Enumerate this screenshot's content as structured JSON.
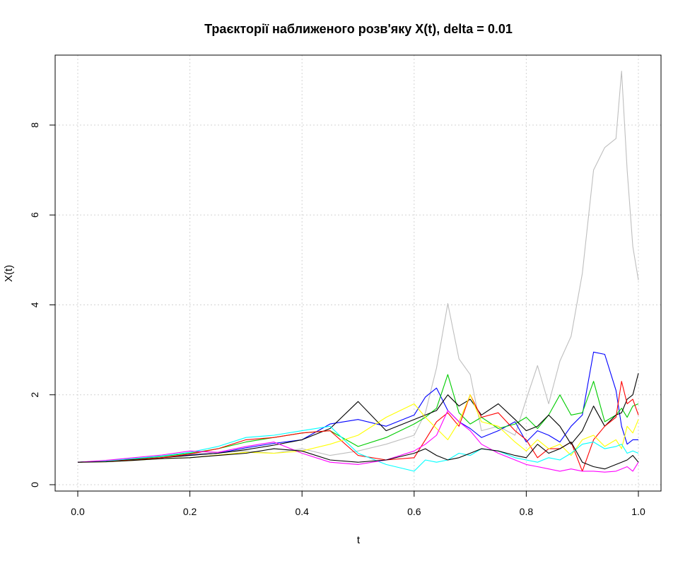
{
  "chart_data": {
    "type": "line",
    "title": "Траєкторії наближеного розв'яку X(t), delta = 0.01",
    "xlabel": "t",
    "ylabel": "X(t)",
    "xlim": [
      0,
      1
    ],
    "ylim": [
      0,
      9.2
    ],
    "xticks": [
      0.0,
      0.2,
      0.4,
      0.6,
      0.8,
      1.0
    ],
    "xtick_labels": [
      "0.0",
      "0.2",
      "0.4",
      "0.6",
      "0.8",
      "1.0"
    ],
    "yticks": [
      0,
      2,
      4,
      6,
      8
    ],
    "ytick_labels": [
      "0",
      "2",
      "4",
      "6",
      "8"
    ],
    "grid": true,
    "legend": "none",
    "x": [
      0,
      0.05,
      0.1,
      0.15,
      0.2,
      0.25,
      0.3,
      0.35,
      0.4,
      0.45,
      0.5,
      0.55,
      0.6,
      0.62,
      0.64,
      0.66,
      0.68,
      0.7,
      0.72,
      0.75,
      0.78,
      0.8,
      0.82,
      0.84,
      0.86,
      0.88,
      0.9,
      0.92,
      0.94,
      0.96,
      0.97,
      0.98,
      0.99,
      1.0
    ],
    "series": [
      {
        "color": "#bebebe",
        "values": [
          0.5,
          0.52,
          0.58,
          0.62,
          0.68,
          0.72,
          0.75,
          0.7,
          0.8,
          0.65,
          0.75,
          0.9,
          1.1,
          1.6,
          2.6,
          4.03,
          2.8,
          2.45,
          1.2,
          1.3,
          1.1,
          1.9,
          2.65,
          1.8,
          2.75,
          3.3,
          4.7,
          7.0,
          7.5,
          7.7,
          9.2,
          7.0,
          5.3,
          4.55
        ]
      },
      {
        "color": "#0000ff",
        "values": [
          0.5,
          0.52,
          0.56,
          0.6,
          0.66,
          0.7,
          0.82,
          0.92,
          1.0,
          1.35,
          1.45,
          1.3,
          1.55,
          1.95,
          2.15,
          1.65,
          1.4,
          1.25,
          1.05,
          1.2,
          1.4,
          0.95,
          1.2,
          1.1,
          0.95,
          1.3,
          1.55,
          2.95,
          2.9,
          2.1,
          1.3,
          0.9,
          1.0,
          1.0
        ]
      },
      {
        "color": "#00cc00",
        "values": [
          0.5,
          0.53,
          0.57,
          0.63,
          0.7,
          0.8,
          0.95,
          1.05,
          1.15,
          1.2,
          0.85,
          1.05,
          1.35,
          1.5,
          1.7,
          2.45,
          1.6,
          1.35,
          1.5,
          1.25,
          1.35,
          1.5,
          1.25,
          1.55,
          2.0,
          1.55,
          1.6,
          2.3,
          1.4,
          1.55,
          1.7,
          1.5,
          1.75,
          1.8
        ]
      },
      {
        "color": "#000000",
        "values": [
          0.5,
          0.52,
          0.56,
          0.6,
          0.65,
          0.7,
          0.78,
          0.88,
          1.0,
          1.25,
          1.85,
          1.2,
          1.45,
          1.55,
          1.65,
          2.0,
          1.75,
          1.9,
          1.55,
          1.8,
          1.45,
          1.2,
          1.3,
          1.55,
          1.3,
          0.9,
          1.2,
          1.75,
          1.3,
          1.55,
          1.6,
          1.9,
          2.0,
          2.48
        ]
      },
      {
        "color": "#ff0000",
        "values": [
          0.5,
          0.52,
          0.55,
          0.6,
          0.68,
          0.8,
          1.0,
          1.05,
          1.15,
          1.2,
          0.65,
          0.55,
          0.6,
          1.0,
          1.4,
          1.6,
          1.3,
          2.0,
          1.5,
          1.6,
          1.2,
          1.0,
          0.6,
          0.8,
          0.8,
          0.95,
          0.3,
          1.0,
          1.3,
          1.5,
          2.3,
          1.8,
          1.9,
          1.55
        ]
      },
      {
        "color": "#ffff00",
        "values": [
          0.5,
          0.51,
          0.54,
          0.58,
          0.6,
          0.66,
          0.72,
          0.7,
          0.75,
          0.9,
          1.1,
          1.5,
          1.8,
          1.5,
          1.25,
          1.0,
          1.4,
          2.0,
          1.4,
          1.3,
          0.95,
          0.75,
          1.0,
          0.8,
          0.9,
          0.65,
          1.0,
          1.1,
          0.85,
          1.0,
          0.8,
          1.3,
          1.15,
          1.45
        ]
      },
      {
        "color": "#00ffff",
        "values": [
          0.5,
          0.53,
          0.58,
          0.64,
          0.72,
          0.85,
          1.05,
          1.1,
          1.2,
          1.3,
          0.7,
          0.45,
          0.3,
          0.55,
          0.5,
          0.55,
          0.7,
          0.65,
          0.8,
          0.75,
          0.6,
          0.55,
          0.5,
          0.6,
          0.55,
          0.7,
          0.9,
          0.95,
          0.8,
          0.85,
          0.9,
          0.7,
          0.75,
          0.7
        ]
      },
      {
        "color": "#ff00ff",
        "values": [
          0.5,
          0.54,
          0.6,
          0.66,
          0.75,
          0.72,
          0.85,
          0.95,
          0.7,
          0.5,
          0.45,
          0.55,
          0.75,
          0.9,
          1.1,
          1.65,
          1.4,
          1.2,
          0.9,
          0.7,
          0.55,
          0.45,
          0.4,
          0.35,
          0.3,
          0.35,
          0.3,
          0.3,
          0.28,
          0.3,
          0.35,
          0.4,
          0.3,
          0.5
        ]
      },
      {
        "color": "#000000",
        "values": [
          0.5,
          0.51,
          0.54,
          0.58,
          0.6,
          0.65,
          0.7,
          0.8,
          0.75,
          0.55,
          0.5,
          0.55,
          0.7,
          0.8,
          0.65,
          0.55,
          0.6,
          0.7,
          0.8,
          0.75,
          0.65,
          0.6,
          0.9,
          0.7,
          0.8,
          0.95,
          0.5,
          0.4,
          0.35,
          0.45,
          0.5,
          0.55,
          0.65,
          0.5
        ]
      }
    ]
  }
}
